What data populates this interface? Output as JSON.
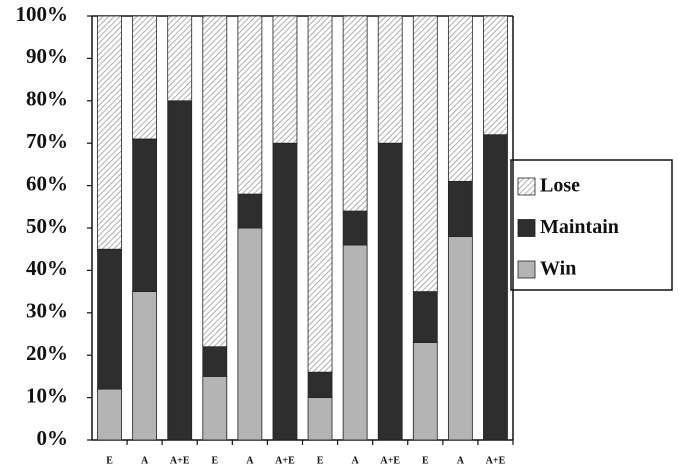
{
  "chart_data": {
    "type": "stacked_bar",
    "categories": [
      "E",
      "A",
      "A+E",
      "E",
      "A",
      "A+E",
      "E",
      "A",
      "A+E",
      "E",
      "A",
      "A+E"
    ],
    "series": [
      {
        "name": "Lose",
        "color": "#9a9a9a",
        "values": [
          55,
          29,
          20,
          78,
          42,
          30,
          84,
          46,
          30,
          65,
          39,
          28
        ]
      },
      {
        "name": "Maintain",
        "color": "#2e2e2e",
        "values": [
          33,
          36,
          80,
          7,
          8,
          70,
          6,
          8,
          70,
          12,
          13,
          72
        ]
      },
      {
        "name": "Win",
        "color": "#b4b4b4",
        "values": [
          12,
          35,
          0,
          15,
          50,
          0,
          10,
          46,
          0,
          23,
          48,
          0
        ]
      }
    ],
    "ylim": [
      0,
      100
    ],
    "yticks": [
      {
        "value": 0,
        "label": "0%"
      },
      {
        "value": 10,
        "label": "10%"
      },
      {
        "value": 20,
        "label": "20%"
      },
      {
        "value": 30,
        "label": "30%"
      },
      {
        "value": 40,
        "label": "40%"
      },
      {
        "value": 50,
        "label": "50%"
      },
      {
        "value": 60,
        "label": "60%"
      },
      {
        "value": 70,
        "label": "70%"
      },
      {
        "value": 80,
        "label": "80%"
      },
      {
        "value": 90,
        "label": "90%"
      },
      {
        "value": 100,
        "label": "100%"
      }
    ],
    "hatched_series": "Lose"
  }
}
